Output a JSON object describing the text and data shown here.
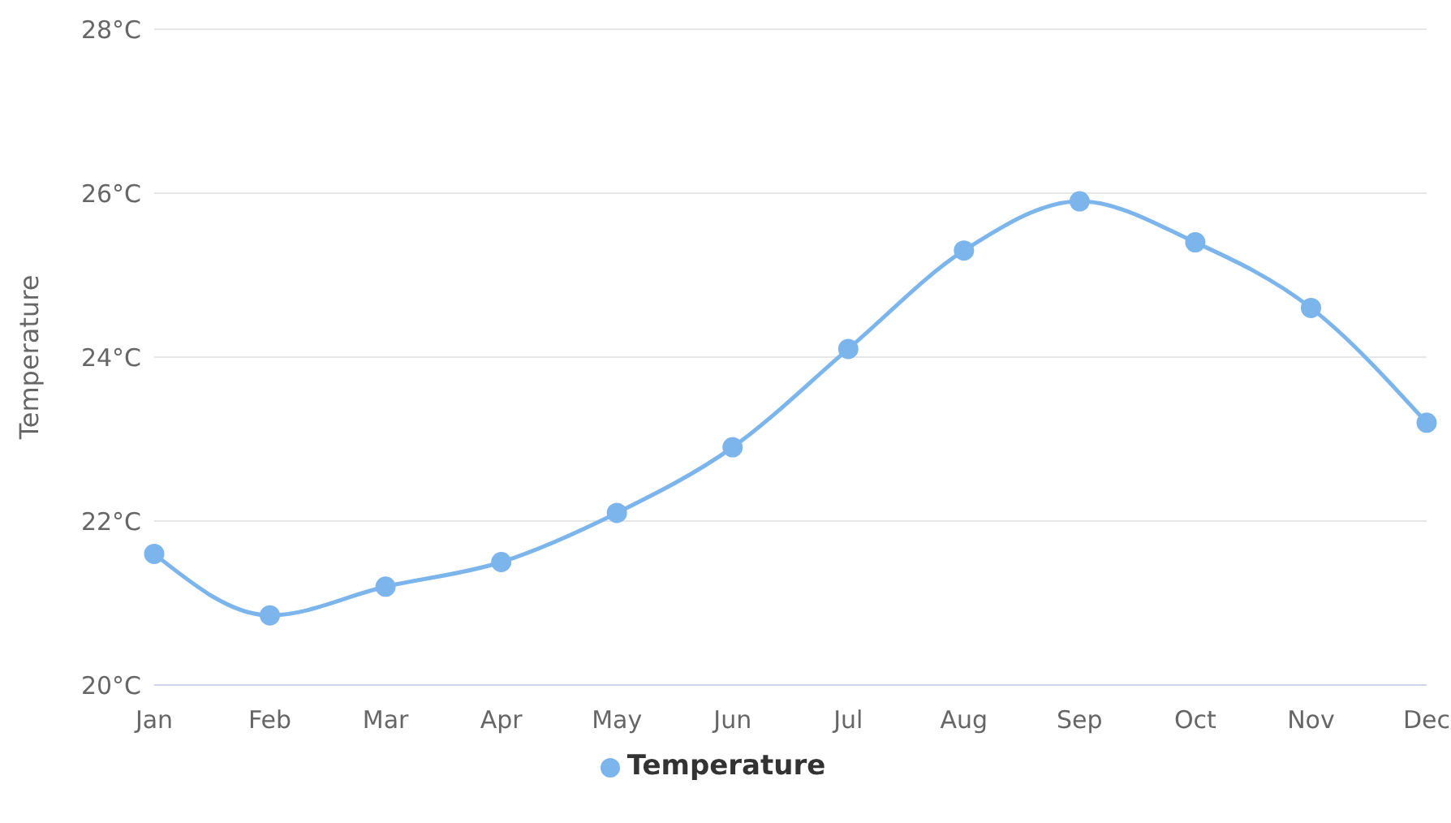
{
  "chart_data": {
    "type": "line",
    "ylabel": "Temperature",
    "categories": [
      "Jan",
      "Feb",
      "Mar",
      "Apr",
      "May",
      "Jun",
      "Jul",
      "Aug",
      "Sep",
      "Oct",
      "Nov",
      "Dec"
    ],
    "series": [
      {
        "name": "Temperature",
        "color": "#7cb5ec",
        "values": [
          21.6,
          20.85,
          21.2,
          21.5,
          22.1,
          22.9,
          24.1,
          25.3,
          25.9,
          25.4,
          24.6,
          23.2
        ]
      }
    ],
    "ylim": [
      20,
      28
    ],
    "yticks": [
      {
        "value": 20,
        "label": "20°C"
      },
      {
        "value": 22,
        "label": "22°C"
      },
      {
        "value": 24,
        "label": "24°C"
      },
      {
        "value": 26,
        "label": "26°C"
      },
      {
        "value": 28,
        "label": "28°C"
      }
    ],
    "grid": "y",
    "legend": "bottom",
    "marker": "circle",
    "line_style": "solid"
  }
}
